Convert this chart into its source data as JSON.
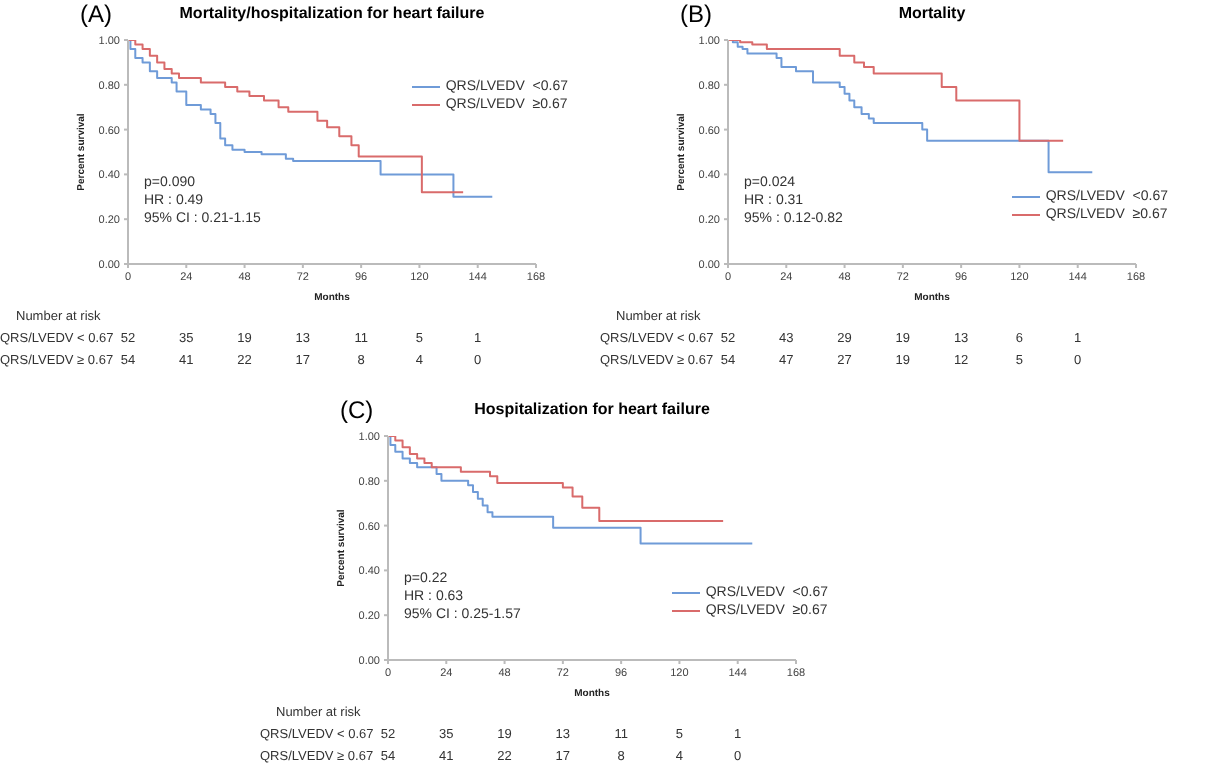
{
  "chart_data": [
    {
      "type": "step",
      "title": "Mortality/hospitalization for heart failure",
      "xlabel": "Months",
      "ylabel": "Percent survival",
      "xlim": [
        0,
        168
      ],
      "xticks": [
        0,
        24,
        48,
        72,
        96,
        120,
        144,
        168
      ],
      "ylim": [
        0,
        1
      ],
      "yticks": [
        {
          "value": 0,
          "label": "0.00"
        },
        {
          "value": 0.2,
          "label": "0.20"
        },
        {
          "value": 0.4,
          "label": "0.40"
        },
        {
          "value": 0.6,
          "label": "0.60"
        },
        {
          "value": 0.8,
          "label": "0.80"
        },
        {
          "value": 1,
          "label": "1.00"
        }
      ],
      "legend": "top right",
      "grid": false,
      "marker": "none",
      "series": [
        {
          "name": "QRS/LVEDV  <0.67",
          "color": "#6f9bd8",
          "x": [
            0,
            1,
            3,
            6,
            9,
            12,
            18,
            20,
            24,
            30,
            34,
            36,
            38,
            40,
            43,
            48,
            55,
            65,
            68,
            104,
            134,
            150
          ],
          "values": [
            1,
            0.96,
            0.92,
            0.9,
            0.86,
            0.83,
            0.81,
            0.77,
            0.71,
            0.69,
            0.67,
            0.63,
            0.56,
            0.53,
            0.51,
            0.5,
            0.49,
            0.47,
            0.46,
            0.4,
            0.3,
            0.3
          ]
        },
        {
          "name": "QRS/LVEDV  ≥0.67",
          "color": "#d96b6b",
          "x": [
            0,
            3,
            6,
            9,
            12,
            15,
            18,
            21,
            30,
            40,
            45,
            50,
            56,
            62,
            66,
            78,
            82,
            87,
            92,
            95,
            121,
            138
          ],
          "values": [
            1,
            0.98,
            0.96,
            0.93,
            0.9,
            0.87,
            0.85,
            0.83,
            0.81,
            0.79,
            0.77,
            0.75,
            0.73,
            0.7,
            0.68,
            0.64,
            0.61,
            0.57,
            0.53,
            0.48,
            0.32,
            0.32
          ]
        }
      ],
      "annotations": [
        "(A)",
        "p=0.090",
        "HR : 0.49",
        "95% CI : 0.21-1.15",
        "Number at risk",
        "QRS/LVEDV < 0.67",
        "52",
        "35",
        "19",
        "13",
        "11",
        "5",
        "1",
        "QRS/LVEDV ≥ 0.67",
        "54",
        "41",
        "22",
        "17",
        "8",
        "4",
        "0"
      ]
    },
    {
      "type": "step",
      "title": "Mortality",
      "xlabel": "Months",
      "ylabel": "Percent survival",
      "xlim": [
        0,
        168
      ],
      "xticks": [
        0,
        24,
        48,
        72,
        96,
        120,
        144,
        168
      ],
      "ylim": [
        0,
        1
      ],
      "yticks": [
        {
          "value": 0,
          "label": "0.00"
        },
        {
          "value": 0.2,
          "label": "0.20"
        },
        {
          "value": 0.4,
          "label": "0.40"
        },
        {
          "value": 0.6,
          "label": "0.60"
        },
        {
          "value": 0.8,
          "label": "0.80"
        },
        {
          "value": 1,
          "label": "1.00"
        }
      ],
      "legend": "bottom right",
      "grid": false,
      "marker": "none",
      "series": [
        {
          "name": "QRS/LVEDV  <0.67",
          "color": "#6f9bd8",
          "x": [
            0,
            2,
            4,
            6,
            8,
            20,
            22,
            28,
            35,
            46,
            48,
            50,
            52,
            55,
            58,
            60,
            80,
            82,
            132,
            150
          ],
          "values": [
            1,
            0.99,
            0.97,
            0.96,
            0.94,
            0.92,
            0.88,
            0.86,
            0.81,
            0.79,
            0.76,
            0.73,
            0.7,
            0.67,
            0.65,
            0.63,
            0.6,
            0.55,
            0.41,
            0.41
          ]
        },
        {
          "name": "QRS/LVEDV  ≥0.67",
          "color": "#d96b6b",
          "x": [
            0,
            5,
            10,
            16,
            46,
            52,
            56,
            60,
            88,
            94,
            120,
            138
          ],
          "values": [
            1,
            0.99,
            0.98,
            0.96,
            0.93,
            0.9,
            0.88,
            0.85,
            0.79,
            0.73,
            0.55,
            0.55
          ]
        }
      ],
      "annotations": [
        "(B)",
        "p=0.024",
        "HR : 0.31",
        "95% : 0.12-0.82",
        "Number at risk",
        "QRS/LVEDV < 0.67",
        "52",
        "43",
        "29",
        "19",
        "13",
        "6",
        "1",
        "QRS/LVEDV ≥ 0.67",
        "54",
        "47",
        "27",
        "19",
        "12",
        "5",
        "0"
      ]
    },
    {
      "type": "step",
      "title": "Hospitalization for heart failure",
      "xlabel": "Months",
      "ylabel": "Percent survival",
      "xlim": [
        0,
        168
      ],
      "xticks": [
        0,
        24,
        48,
        72,
        96,
        120,
        144,
        168
      ],
      "ylim": [
        0,
        1
      ],
      "yticks": [
        {
          "value": 0,
          "label": "0.00"
        },
        {
          "value": 0.2,
          "label": "0.20"
        },
        {
          "value": 0.4,
          "label": "0.40"
        },
        {
          "value": 0.6,
          "label": "0.60"
        },
        {
          "value": 0.8,
          "label": "0.80"
        },
        {
          "value": 1,
          "label": "1.00"
        }
      ],
      "legend": "bottom right",
      "grid": false,
      "marker": "none",
      "series": [
        {
          "name": "QRS/LVEDV  <0.67",
          "color": "#6f9bd8",
          "x": [
            0,
            1,
            3,
            6,
            9,
            12,
            20,
            22,
            30,
            33,
            35,
            37,
            39,
            41,
            43,
            68,
            104,
            150
          ],
          "values": [
            1,
            0.96,
            0.93,
            0.9,
            0.88,
            0.86,
            0.83,
            0.8,
            0.8,
            0.78,
            0.75,
            0.72,
            0.69,
            0.66,
            0.64,
            0.59,
            0.52,
            0.52
          ]
        },
        {
          "name": "QRS/LVEDV  ≥0.67",
          "color": "#d96b6b",
          "x": [
            0,
            3,
            6,
            9,
            12,
            15,
            18,
            30,
            42,
            45,
            72,
            76,
            80,
            87,
            138
          ],
          "values": [
            1,
            0.98,
            0.95,
            0.92,
            0.9,
            0.88,
            0.86,
            0.84,
            0.82,
            0.79,
            0.77,
            0.73,
            0.68,
            0.62,
            0.62
          ]
        }
      ],
      "annotations": [
        "(C)",
        "p=0.22",
        "HR : 0.63",
        "95% CI : 0.25-1.57",
        "Number at risk",
        "QRS/LVEDV < 0.67",
        "52",
        "35",
        "19",
        "13",
        "11",
        "5",
        "1",
        "QRS/LVEDV ≥ 0.67",
        "54",
        "41",
        "22",
        "17",
        "8",
        "4",
        "0"
      ]
    }
  ]
}
